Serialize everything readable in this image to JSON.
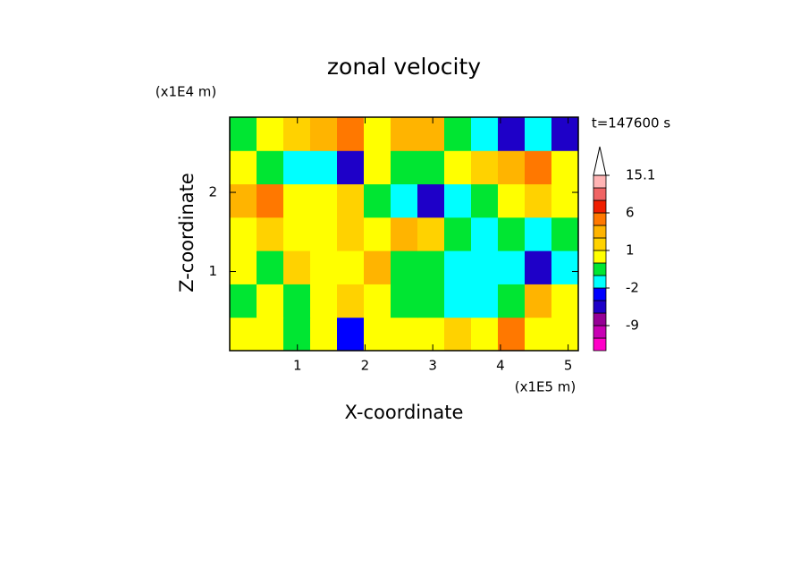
{
  "chart_data": {
    "type": "contour",
    "title": "zonal velocity",
    "time_label": "t=147600 s",
    "x_label": "X-coordinate",
    "y_label": "Z-coordinate",
    "x_unit": "(x1E5 m)",
    "y_unit": "(x1E4 m)",
    "xlim": [
      0,
      5.15
    ],
    "ylim": [
      0,
      2.95
    ],
    "xticks": [
      1,
      2,
      3,
      4,
      5
    ],
    "yticks": [
      1,
      2
    ],
    "z": [
      [
        0.5,
        0.5,
        -0.5,
        0.5,
        -2.5,
        0.5,
        0.5,
        0.5,
        1.5,
        0.5,
        4,
        0.5,
        0.5
      ],
      [
        -0.5,
        0.5,
        -0.5,
        0.5,
        1.5,
        0.5,
        -0.5,
        -0.5,
        -1.5,
        -1.5,
        -0.5,
        2.5,
        0.5
      ],
      [
        0.5,
        -0.5,
        1.5,
        0.5,
        0.5,
        2.5,
        -0.5,
        -0.5,
        -1.5,
        -1.5,
        -1.5,
        -4,
        -1.5
      ],
      [
        0.5,
        1.5,
        0.5,
        0.5,
        1.5,
        0.5,
        2.5,
        1.5,
        -0.5,
        -1.5,
        -0.5,
        -1.5,
        -0.5
      ],
      [
        2.5,
        4,
        0.5,
        0.5,
        1.5,
        -0.5,
        -1.5,
        -4,
        -1.5,
        -0.5,
        0.5,
        1.5,
        0.5
      ],
      [
        0.5,
        -0.5,
        -1.5,
        -1.5,
        -4,
        0.5,
        -0.5,
        -0.5,
        0.5,
        1.5,
        2.5,
        4,
        0.5
      ],
      [
        -0.5,
        0.5,
        1.5,
        2.5,
        4,
        0.5,
        2.5,
        2.5,
        -0.5,
        -1.5,
        -4,
        -1.5,
        -4
      ]
    ],
    "levels": [
      -15,
      -12,
      -9,
      -6,
      -3,
      -2,
      -1,
      0,
      1,
      2,
      3,
      6,
      9,
      12,
      15.1
    ],
    "colors": [
      "#ff00c8",
      "#c800b4",
      "#960096",
      "#1e00c8",
      "#0000ff",
      "#00ffff",
      "#00e632",
      "#ffff00",
      "#ffd200",
      "#ffb400",
      "#ff7800",
      "#f01e00",
      "#f06464",
      "#ffb4b4"
    ],
    "colorbar_ticks": [
      15.1,
      6,
      1,
      -2,
      -9
    ]
  }
}
